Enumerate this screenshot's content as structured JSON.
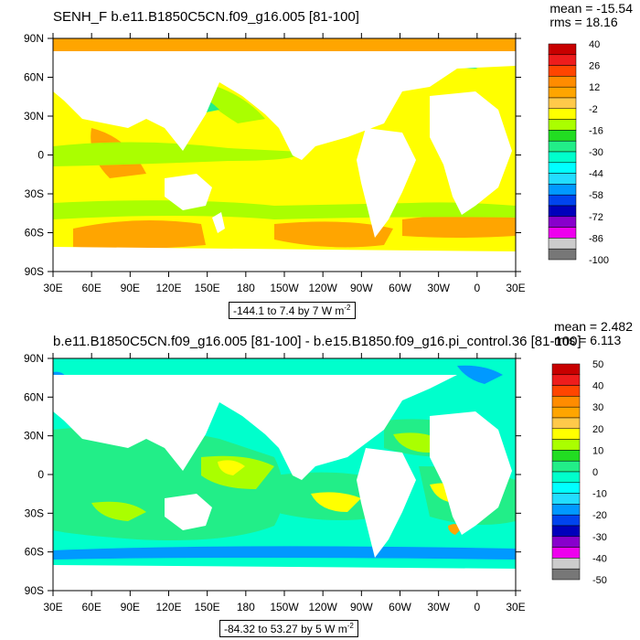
{
  "panels": [
    {
      "title": "SENH_F b.e11.B1850C5CN.f09_g16.005 [81-100]",
      "stats": {
        "mean": "mean = -15.54",
        "rms": "rms = 18.16"
      },
      "range_label": "-144.1 to 7.4 by 7  W m",
      "range_exp": "-2",
      "colorbar": {
        "labels": [
          "40",
          "26",
          "12",
          "-2",
          "-16",
          "-30",
          "-44",
          "-58",
          "-72",
          "-86",
          "-100"
        ],
        "colors": [
          "#c80000",
          "#ee1c1c",
          "#ff4500",
          "#ff8c00",
          "#ffa500",
          "#ffc94a",
          "#ffff00",
          "#aaff00",
          "#22dd22",
          "#22ee88",
          "#00ffcc",
          "#00ffff",
          "#22ddff",
          "#0099ff",
          "#0044ee",
          "#0000bb",
          "#8800cc",
          "#ee00ee",
          "#cccccc",
          "#777777"
        ]
      }
    },
    {
      "title": "b.e11.B1850C5CN.f09_g16.005 [81-100] - b.e15.B1850.f09_g16.pi_control.36 [81-100]",
      "stats": {
        "mean": "mean = 2.482",
        "rms": "rms = 6.113"
      },
      "range_label": "-84.32 to 53.27 by 5  W m",
      "range_exp": "-2",
      "colorbar": {
        "labels": [
          "50",
          "40",
          "30",
          "20",
          "10",
          "0",
          "-10",
          "-20",
          "-30",
          "-40",
          "-50"
        ],
        "colors": [
          "#c80000",
          "#ee1c1c",
          "#ff4500",
          "#ff8c00",
          "#ffa500",
          "#ffc94a",
          "#ffff00",
          "#aaff00",
          "#22dd22",
          "#22ee88",
          "#00ffcc",
          "#00ffff",
          "#22ddff",
          "#0099ff",
          "#0044ee",
          "#0000bb",
          "#8800cc",
          "#ee00ee",
          "#cccccc",
          "#777777"
        ]
      }
    }
  ],
  "chart_data": [
    {
      "type": "heatmap",
      "title": "SENH_F b.e11.B1850C5CN.f09_g16.005 [81-100]",
      "variable": "SENH_F",
      "units": "W m-2",
      "x_ticks": [
        "30E",
        "60E",
        "90E",
        "120E",
        "150E",
        "180",
        "150W",
        "120W",
        "90W",
        "60W",
        "30W",
        "0",
        "30E"
      ],
      "y_ticks": [
        "90N",
        "60N",
        "30N",
        "0",
        "30S",
        "60S",
        "90S"
      ],
      "colorbar_levels": [
        40,
        26,
        12,
        -2,
        -16,
        -30,
        -44,
        -58,
        -72,
        -86,
        -100
      ],
      "mean": -15.54,
      "rms": 18.16,
      "range": {
        "min": -144.1,
        "max": 7.4,
        "interval": 7
      }
    },
    {
      "type": "heatmap",
      "title": "b.e11.B1850C5CN.f09_g16.005 [81-100] - b.e15.B1850.f09_g16.pi_control.36 [81-100]",
      "units": "W m-2",
      "x_ticks": [
        "30E",
        "60E",
        "90E",
        "120E",
        "150E",
        "180",
        "150W",
        "120W",
        "90W",
        "60W",
        "30W",
        "0",
        "30E"
      ],
      "y_ticks": [
        "90N",
        "60N",
        "30N",
        "0",
        "30S",
        "60S",
        "90S"
      ],
      "colorbar_levels": [
        50,
        40,
        30,
        20,
        10,
        0,
        -10,
        -20,
        -30,
        -40,
        -50
      ],
      "mean": 2.482,
      "rms": 6.113,
      "range": {
        "min": -84.32,
        "max": 53.27,
        "interval": 5
      }
    }
  ]
}
